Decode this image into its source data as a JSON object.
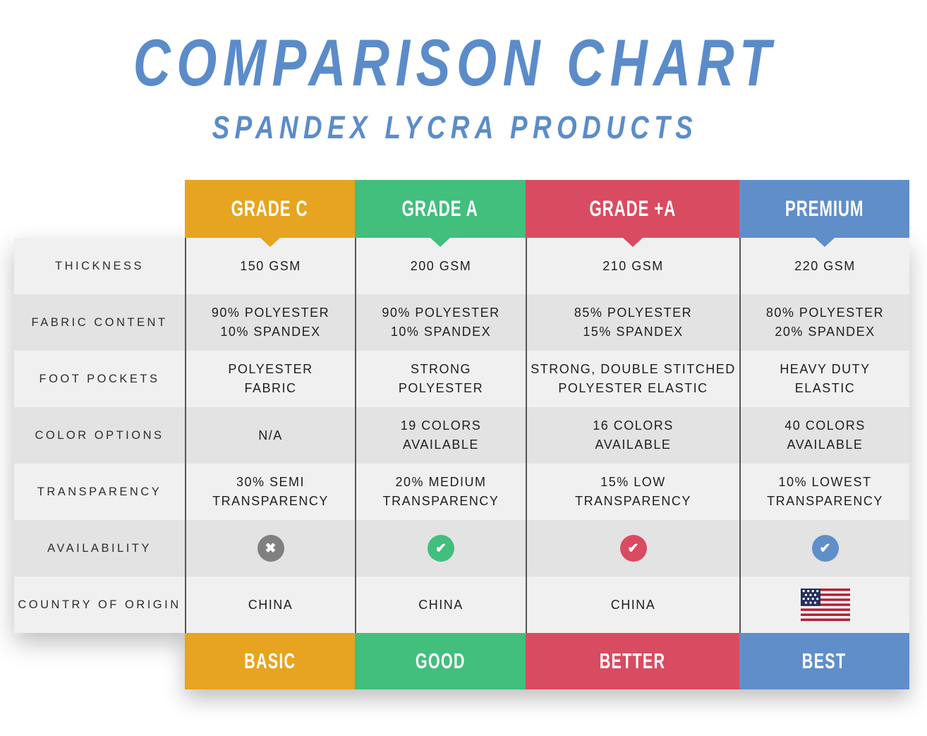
{
  "header": {
    "title": "COMPARISON CHART",
    "subtitle": "SPANDEX LYCRA PRODUCTS",
    "title_color": "#5B8CC9"
  },
  "table": {
    "columns": [
      {
        "id": "grade-c",
        "label": "GRADE C",
        "color": "#E7A420",
        "tier": "BASIC"
      },
      {
        "id": "grade-a",
        "label": "GRADE A",
        "color": "#42BE7D",
        "tier": "GOOD"
      },
      {
        "id": "grade-plus-a",
        "label": "GRADE +A",
        "color": "#D94B60",
        "tier": "BETTER"
      },
      {
        "id": "premium",
        "label": "PREMIUM",
        "color": "#608EC9",
        "tier": "BEST"
      }
    ],
    "rows": [
      {
        "key": "thickness",
        "label": "THICKNESS",
        "type": "text",
        "cells": [
          "150 GSM",
          "200 GSM",
          "210 GSM",
          "220 GSM"
        ]
      },
      {
        "key": "fabric-content",
        "label": "FABRIC CONTENT",
        "type": "text",
        "cells": [
          "90% POLYESTER\n10% SPANDEX",
          "90% POLYESTER\n10% SPANDEX",
          "85% POLYESTER\n15% SPANDEX",
          "80% POLYESTER\n20% SPANDEX"
        ]
      },
      {
        "key": "foot-pockets",
        "label": "FOOT POCKETS",
        "type": "text",
        "cells": [
          "POLYESTER\nFABRIC",
          "STRONG\nPOLYESTER",
          "STRONG, DOUBLE STITCHED\nPOLYESTER ELASTIC",
          "HEAVY DUTY\nELASTIC"
        ]
      },
      {
        "key": "color-options",
        "label": "COLOR OPTIONS",
        "type": "text",
        "cells": [
          "N/A",
          "19 COLORS\nAVAILABLE",
          "16 COLORS\nAVAILABLE",
          "40 COLORS\nAVAILABLE"
        ]
      },
      {
        "key": "transparency",
        "label": "TRANSPARENCY",
        "type": "text",
        "cells": [
          "30% SEMI\nTRANSPARENCY",
          "20% MEDIUM\nTRANSPARENCY",
          "15% LOW\nTRANSPARENCY",
          "10% LOWEST\nTRANSPARENCY"
        ]
      },
      {
        "key": "availability",
        "label": "AVAILABILITY",
        "type": "icon",
        "cells": [
          {
            "icon": "cross-icon",
            "symbol": "✖",
            "color": "#808080"
          },
          {
            "icon": "check-icon",
            "symbol": "✔",
            "color": "#42BE7D"
          },
          {
            "icon": "check-icon",
            "symbol": "✔",
            "color": "#D94B60"
          },
          {
            "icon": "check-icon",
            "symbol": "✔",
            "color": "#608EC9"
          }
        ]
      },
      {
        "key": "country-of-origin",
        "label": "COUNTRY OF ORIGIN",
        "type": "text",
        "cells": [
          "CHINA",
          "CHINA",
          "CHINA",
          {
            "type": "flag",
            "icon": "usa-flag"
          }
        ]
      }
    ],
    "styles": {
      "row_light": "#F0F0F0",
      "row_dark": "#E3E3E3",
      "divider": "#55555A"
    },
    "flag_colors": {
      "red": "#B22234",
      "navy": "#26305C",
      "white": "#FFFFFF"
    }
  },
  "chart_data": {
    "type": "table",
    "title": "COMPARISON CHART",
    "subtitle": "SPANDEX LYCRA PRODUCTS",
    "columns": [
      "GRADE C",
      "GRADE A",
      "GRADE +A",
      "PREMIUM"
    ],
    "row_headers": [
      "THICKNESS",
      "FABRIC CONTENT",
      "FOOT POCKETS",
      "COLOR OPTIONS",
      "TRANSPARENCY",
      "AVAILABILITY",
      "COUNTRY OF ORIGIN"
    ],
    "cells": [
      [
        "150 GSM",
        "200 GSM",
        "210 GSM",
        "220 GSM"
      ],
      [
        "90% POLYESTER 10% SPANDEX",
        "90% POLYESTER 10% SPANDEX",
        "85% POLYESTER 15% SPANDEX",
        "80% POLYESTER 20% SPANDEX"
      ],
      [
        "POLYESTER FABRIC",
        "STRONG POLYESTER",
        "STRONG, DOUBLE STITCHED POLYESTER ELASTIC",
        "HEAVY DUTY ELASTIC"
      ],
      [
        "N/A",
        "19 COLORS AVAILABLE",
        "16 COLORS AVAILABLE",
        "40 COLORS AVAILABLE"
      ],
      [
        "30% SEMI TRANSPARENCY",
        "20% MEDIUM TRANSPARENCY",
        "15% LOW TRANSPARENCY",
        "10% LOWEST TRANSPARENCY"
      ],
      [
        "no",
        "yes",
        "yes",
        "yes"
      ],
      [
        "CHINA",
        "CHINA",
        "CHINA",
        "USA (flag)"
      ]
    ],
    "footer_tiers": [
      "BASIC",
      "GOOD",
      "BETTER",
      "BEST"
    ],
    "column_colors": [
      "#E7A420",
      "#42BE7D",
      "#D94B60",
      "#608EC9"
    ]
  }
}
